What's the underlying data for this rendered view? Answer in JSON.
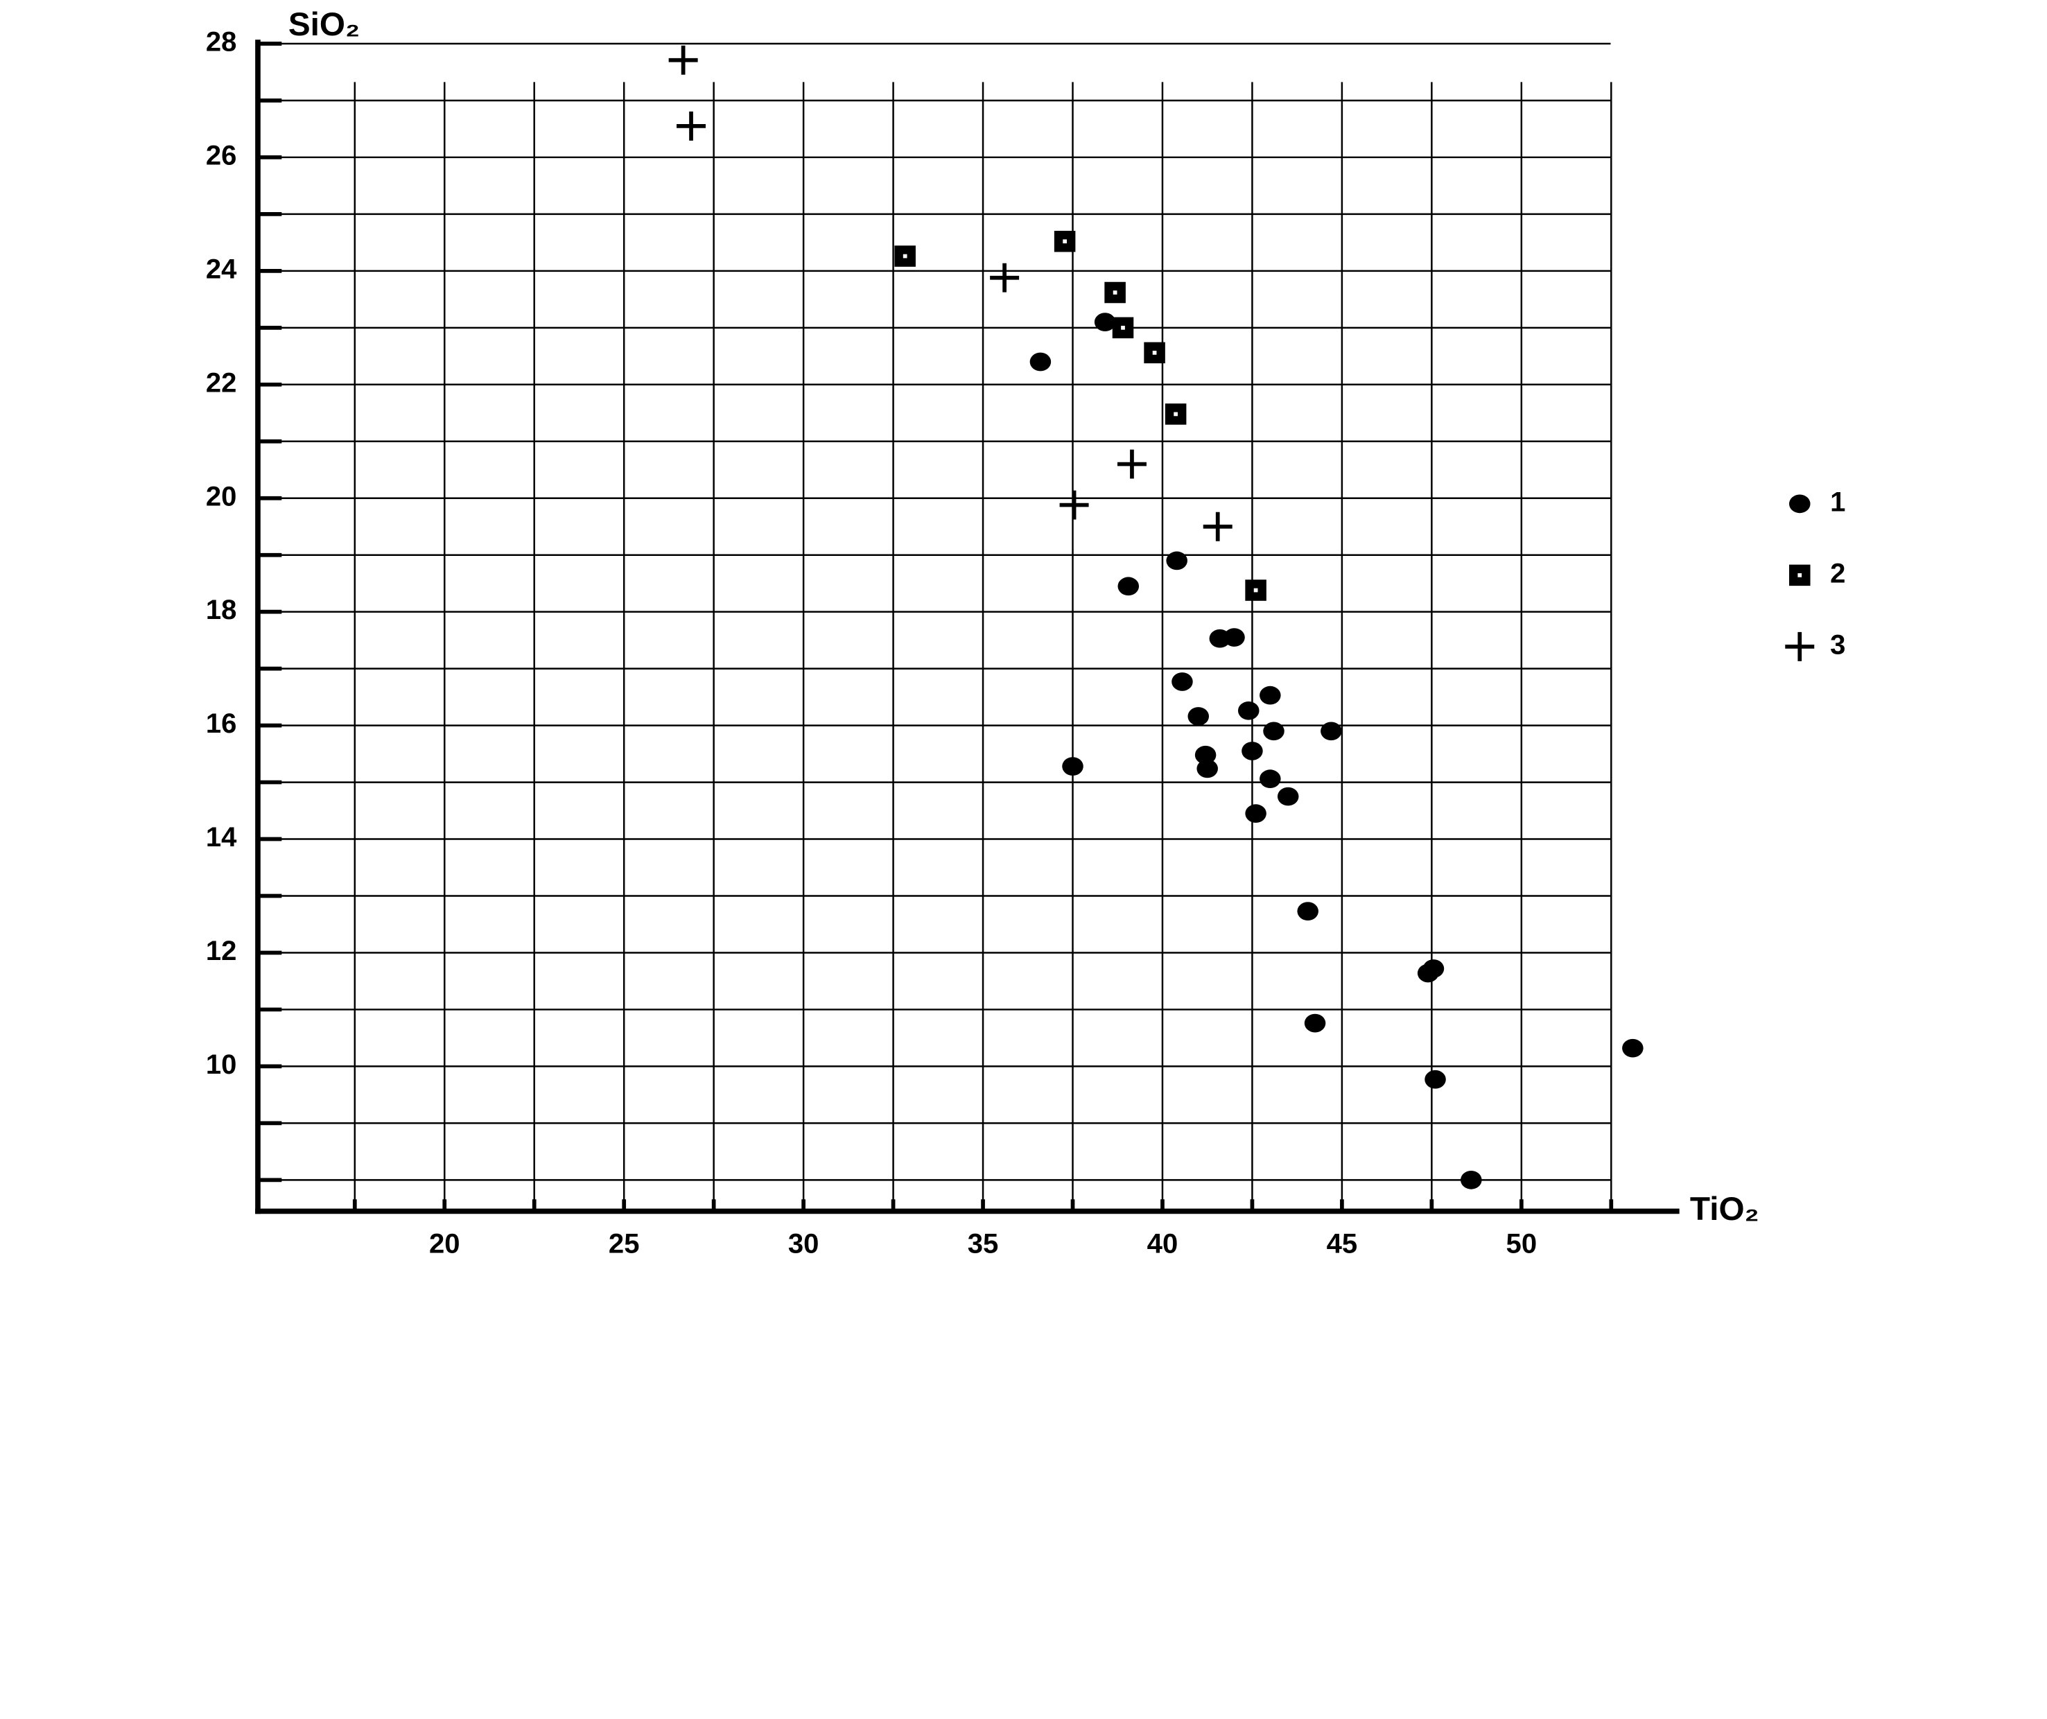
{
  "chart_data": {
    "type": "scatter",
    "x_label": "TiO₂",
    "y_label": "SiO₂",
    "xlim": [
      14.8,
      54.4
    ],
    "ylim": [
      7.45,
      28
    ],
    "xticks": [
      20,
      25,
      30,
      35,
      40,
      45,
      50
    ],
    "x_minor_ticks": [
      17.5,
      22.5,
      27.5,
      32.5,
      37.5,
      42.5,
      47.5,
      52.5
    ],
    "yticks": [
      10,
      12,
      14,
      16,
      18,
      20,
      22,
      24,
      26,
      28
    ],
    "y_minor_ticks": [
      8,
      9,
      11,
      13,
      15,
      17,
      19,
      21,
      23,
      25,
      27
    ],
    "grid": true,
    "legend_position": "right",
    "series": [
      {
        "name": "1",
        "marker": "circle",
        "color": "#000000",
        "x": [
          36.6,
          38.4,
          39.05,
          40.4,
          41.6,
          42.0,
          40.55,
          41.0,
          42.4,
          43.0,
          43.1,
          44.7,
          37.5,
          41.2,
          41.25,
          42.5,
          43.0,
          43.5,
          42.6,
          44.05,
          44.25,
          47.4,
          47.55,
          47.6,
          48.6,
          53.1
        ],
        "y": [
          22.4,
          23.1,
          18.45,
          18.9,
          17.53,
          17.55,
          16.77,
          16.16,
          16.26,
          16.53,
          15.9,
          15.9,
          15.28,
          15.48,
          15.24,
          15.55,
          15.06,
          14.75,
          14.45,
          12.73,
          10.76,
          11.64,
          11.72,
          9.77,
          8.0,
          10.32
        ]
      },
      {
        "name": "2",
        "marker": "square",
        "color": "#000000",
        "x": [
          32.83,
          37.28,
          38.68,
          38.9,
          39.78,
          40.37,
          42.6
        ],
        "y": [
          24.26,
          24.52,
          23.62,
          23.0,
          22.56,
          21.48,
          18.38
        ]
      },
      {
        "name": "3",
        "marker": "plus",
        "color": "#000000",
        "x": [
          26.65,
          26.87,
          35.6,
          39.15,
          37.54,
          41.54
        ],
        "y": [
          27.71,
          26.55,
          23.88,
          20.6,
          19.88,
          19.5
        ]
      }
    ]
  }
}
